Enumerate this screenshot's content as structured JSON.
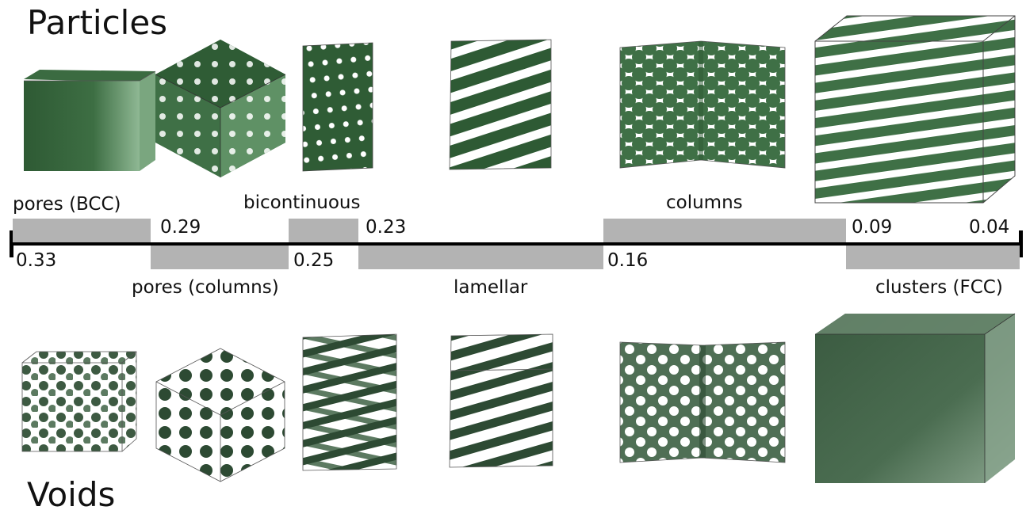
{
  "titles": {
    "particles": "Particles",
    "voids": "Voids"
  },
  "colors": {
    "particle_dark": "#2e5a34",
    "particle_mid": "#4e8a55",
    "particle_light": "#8fb894",
    "void_dark": "#2d4a33",
    "void_mid": "#5c7a61",
    "band": "#b3b3b3",
    "axis": "#000000"
  },
  "phases_upper": {
    "pores_bcc": "pores (BCC)",
    "bicontinuous": "bicontinuous",
    "columns": "columns"
  },
  "phases_lower": {
    "pores_columns": "pores (columns)",
    "lamellar": "lamellar",
    "clusters_fcc": "clusters (FCC)"
  },
  "scale_values": {
    "v033": "0.33",
    "v029": "0.29",
    "v025": "0.25",
    "v023": "0.23",
    "v016": "0.16",
    "v009": "0.09",
    "v004": "0.04"
  },
  "renders": {
    "particles": [
      "cube-dense",
      "cube-diagonal-pores",
      "prism-pores",
      "prism-lamellar",
      "box-columns",
      "cube-fcc"
    ],
    "voids": [
      "cube-voids",
      "hex-voids",
      "prism-bicontinuous-voids",
      "prism-lamellar-voids",
      "box-honeycomb-voids",
      "cube-dense-voids"
    ]
  }
}
